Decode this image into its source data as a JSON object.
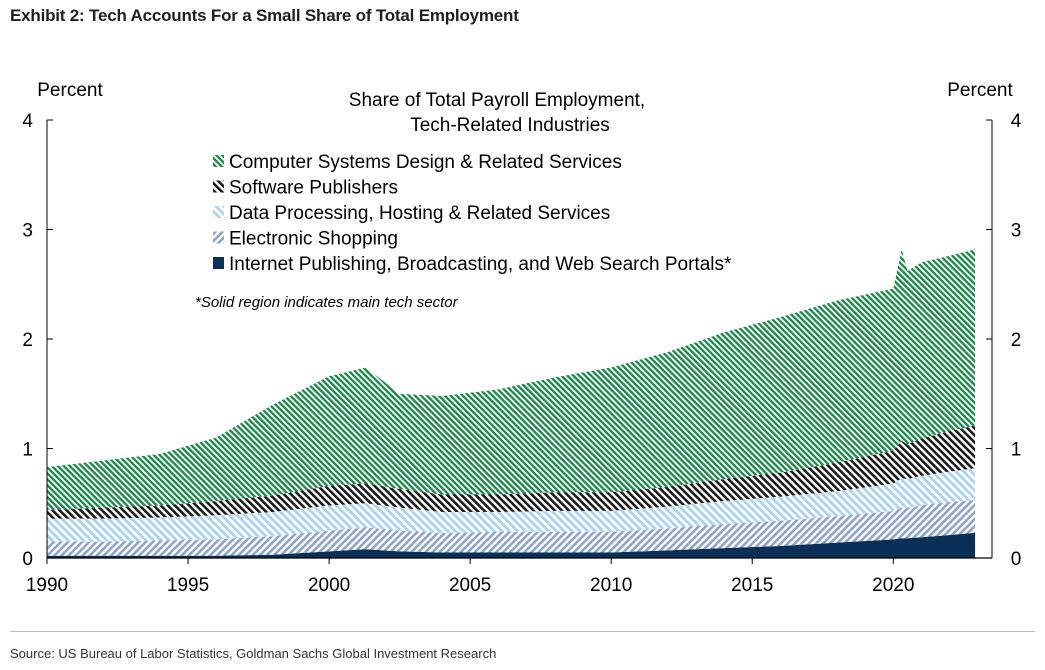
{
  "exhibit_title": "Exhibit 2: Tech Accounts For a Small Share of Total Employment",
  "source": "Source: US Bureau of Labor Statistics, Goldman Sachs Global Investment Research",
  "colors": {
    "computer_systems": "#1e8a4c",
    "software": "#1a1a1a",
    "data_processing": "#a9d3ee",
    "electronic_shopping": "#8ea3c8",
    "internet_publishing": "#0b2f57"
  },
  "chart_data": {
    "type": "area",
    "stacked": true,
    "title": "Share of Total Payroll Employment,",
    "subtitle": "Tech-Related Industries",
    "ylabel_left": "Percent",
    "ylabel_right": "Percent",
    "xlim": [
      1990,
      2023.5
    ],
    "ylim": [
      0,
      4
    ],
    "xticks": [
      1990,
      1995,
      2000,
      2005,
      2010,
      2015,
      2020
    ],
    "yticks": [
      0,
      1,
      2,
      3,
      4
    ],
    "grid": false,
    "legend_position": "top-left",
    "annotation": "*Solid region indicates main tech sector",
    "x": [
      1990,
      1992,
      1994,
      1996,
      1998,
      2000,
      2001.3,
      2002.5,
      2004,
      2006,
      2008,
      2010,
      2012,
      2014,
      2016,
      2018,
      2020,
      2020.3,
      2020.5,
      2021,
      2022,
      2022.9
    ],
    "series": [
      {
        "name": "Internet Publishing, Broadcasting, and Web Search Portals*",
        "key": "internet_publishing",
        "values": [
          0.02,
          0.02,
          0.02,
          0.02,
          0.03,
          0.06,
          0.08,
          0.06,
          0.05,
          0.05,
          0.05,
          0.05,
          0.07,
          0.09,
          0.11,
          0.14,
          0.17,
          0.18,
          0.18,
          0.19,
          0.21,
          0.23
        ]
      },
      {
        "name": "Electronic Shopping",
        "key": "electronic_shopping",
        "values": [
          0.13,
          0.13,
          0.14,
          0.15,
          0.17,
          0.19,
          0.2,
          0.19,
          0.18,
          0.19,
          0.19,
          0.19,
          0.2,
          0.22,
          0.23,
          0.24,
          0.26,
          0.28,
          0.28,
          0.29,
          0.3,
          0.3
        ]
      },
      {
        "name": "Data Processing, Hosting & Related Services",
        "key": "data_processing",
        "values": [
          0.21,
          0.21,
          0.21,
          0.22,
          0.22,
          0.23,
          0.22,
          0.21,
          0.19,
          0.18,
          0.19,
          0.19,
          0.2,
          0.21,
          0.22,
          0.23,
          0.25,
          0.27,
          0.26,
          0.27,
          0.28,
          0.29
        ]
      },
      {
        "name": "Software Publishers",
        "key": "software",
        "values": [
          0.08,
          0.1,
          0.11,
          0.13,
          0.15,
          0.18,
          0.18,
          0.17,
          0.16,
          0.16,
          0.17,
          0.17,
          0.18,
          0.2,
          0.22,
          0.26,
          0.3,
          0.34,
          0.32,
          0.34,
          0.37,
          0.39
        ]
      },
      {
        "name": "Computer Systems Design & Related Services",
        "key": "computer_systems",
        "values": [
          0.39,
          0.43,
          0.47,
          0.58,
          0.83,
          1.0,
          1.06,
          0.87,
          0.9,
          0.96,
          1.05,
          1.14,
          1.23,
          1.34,
          1.42,
          1.48,
          1.48,
          1.75,
          1.58,
          1.61,
          1.6,
          1.61
        ]
      }
    ]
  }
}
